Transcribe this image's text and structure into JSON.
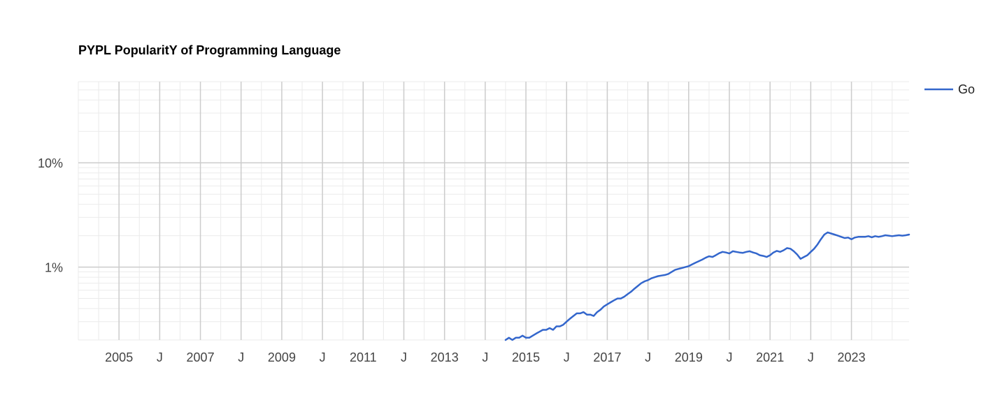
{
  "chart_data": {
    "type": "line",
    "title": "PYPL PopularitY of Programming Language",
    "xlabel": "",
    "ylabel": "",
    "y_scale": "log",
    "ylim": [
      0.2,
      60
    ],
    "xlim": [
      "2004-01",
      "2024-06"
    ],
    "y_ticks": [
      {
        "value": 10,
        "label": "10%"
      },
      {
        "value": 1,
        "label": "1%"
      }
    ],
    "x_ticks": [
      {
        "value": "2005-01",
        "label": "2005"
      },
      {
        "value": "2006-01",
        "label": "J"
      },
      {
        "value": "2007-01",
        "label": "2007"
      },
      {
        "value": "2008-01",
        "label": "J"
      },
      {
        "value": "2009-01",
        "label": "2009"
      },
      {
        "value": "2010-01",
        "label": "J"
      },
      {
        "value": "2011-01",
        "label": "2011"
      },
      {
        "value": "2012-01",
        "label": "J"
      },
      {
        "value": "2013-01",
        "label": "2013"
      },
      {
        "value": "2014-01",
        "label": "J"
      },
      {
        "value": "2015-01",
        "label": "2015"
      },
      {
        "value": "2016-01",
        "label": "J"
      },
      {
        "value": "2017-01",
        "label": "2017"
      },
      {
        "value": "2018-01",
        "label": "J"
      },
      {
        "value": "2019-01",
        "label": "2019"
      },
      {
        "value": "2020-01",
        "label": "J"
      },
      {
        "value": "2021-01",
        "label": "2021"
      },
      {
        "value": "2022-01",
        "label": "J"
      },
      {
        "value": "2023-01",
        "label": "2023"
      }
    ],
    "grid": true,
    "legend": "right",
    "series": [
      {
        "name": "Go",
        "color": "#3366cc",
        "x": [
          "2014-07",
          "2014-08",
          "2014-09",
          "2014-10",
          "2014-11",
          "2014-12",
          "2015-01",
          "2015-02",
          "2015-03",
          "2015-04",
          "2015-05",
          "2015-06",
          "2015-07",
          "2015-08",
          "2015-09",
          "2015-10",
          "2015-11",
          "2015-12",
          "2016-01",
          "2016-02",
          "2016-03",
          "2016-04",
          "2016-05",
          "2016-06",
          "2016-07",
          "2016-08",
          "2016-09",
          "2016-10",
          "2016-11",
          "2016-12",
          "2017-01",
          "2017-02",
          "2017-03",
          "2017-04",
          "2017-05",
          "2017-06",
          "2017-07",
          "2017-08",
          "2017-09",
          "2017-10",
          "2017-11",
          "2017-12",
          "2018-01",
          "2018-02",
          "2018-03",
          "2018-04",
          "2018-05",
          "2018-06",
          "2018-07",
          "2018-08",
          "2018-09",
          "2018-10",
          "2018-11",
          "2018-12",
          "2019-01",
          "2019-02",
          "2019-03",
          "2019-04",
          "2019-05",
          "2019-06",
          "2019-07",
          "2019-08",
          "2019-09",
          "2019-10",
          "2019-11",
          "2019-12",
          "2020-01",
          "2020-02",
          "2020-03",
          "2020-04",
          "2020-05",
          "2020-06",
          "2020-07",
          "2020-08",
          "2020-09",
          "2020-10",
          "2020-11",
          "2020-12",
          "2021-01",
          "2021-02",
          "2021-03",
          "2021-04",
          "2021-05",
          "2021-06",
          "2021-07",
          "2021-08",
          "2021-09",
          "2021-10",
          "2021-11",
          "2021-12",
          "2022-01",
          "2022-02",
          "2022-03",
          "2022-04",
          "2022-05",
          "2022-06",
          "2022-07",
          "2022-08",
          "2022-09",
          "2022-10",
          "2022-11",
          "2022-12",
          "2023-01",
          "2023-02",
          "2023-03",
          "2023-04",
          "2023-05",
          "2023-06",
          "2023-07",
          "2023-08",
          "2023-09",
          "2023-10",
          "2023-11",
          "2023-12",
          "2024-01",
          "2024-02",
          "2024-03",
          "2024-04",
          "2024-05",
          "2024-06"
        ],
        "values": [
          0.2,
          0.21,
          0.2,
          0.21,
          0.21,
          0.22,
          0.21,
          0.21,
          0.22,
          0.23,
          0.24,
          0.25,
          0.25,
          0.26,
          0.25,
          0.27,
          0.27,
          0.28,
          0.3,
          0.32,
          0.34,
          0.36,
          0.36,
          0.37,
          0.35,
          0.35,
          0.34,
          0.37,
          0.39,
          0.42,
          0.44,
          0.46,
          0.48,
          0.5,
          0.5,
          0.52,
          0.55,
          0.58,
          0.62,
          0.66,
          0.7,
          0.73,
          0.75,
          0.78,
          0.8,
          0.82,
          0.83,
          0.84,
          0.86,
          0.9,
          0.94,
          0.96,
          0.98,
          1.0,
          1.02,
          1.06,
          1.1,
          1.14,
          1.18,
          1.23,
          1.27,
          1.25,
          1.3,
          1.36,
          1.4,
          1.38,
          1.35,
          1.42,
          1.4,
          1.38,
          1.37,
          1.4,
          1.42,
          1.38,
          1.35,
          1.3,
          1.28,
          1.25,
          1.3,
          1.38,
          1.43,
          1.4,
          1.45,
          1.52,
          1.5,
          1.42,
          1.32,
          1.2,
          1.25,
          1.3,
          1.4,
          1.5,
          1.65,
          1.85,
          2.05,
          2.15,
          2.1,
          2.05,
          2.0,
          1.95,
          1.9,
          1.92,
          1.85,
          1.92,
          1.95,
          1.95,
          1.95,
          1.98,
          1.93,
          1.98,
          1.95,
          1.98,
          2.02,
          2.0,
          1.98,
          2.0,
          2.02,
          2.0,
          2.02,
          2.05
        ]
      }
    ]
  }
}
